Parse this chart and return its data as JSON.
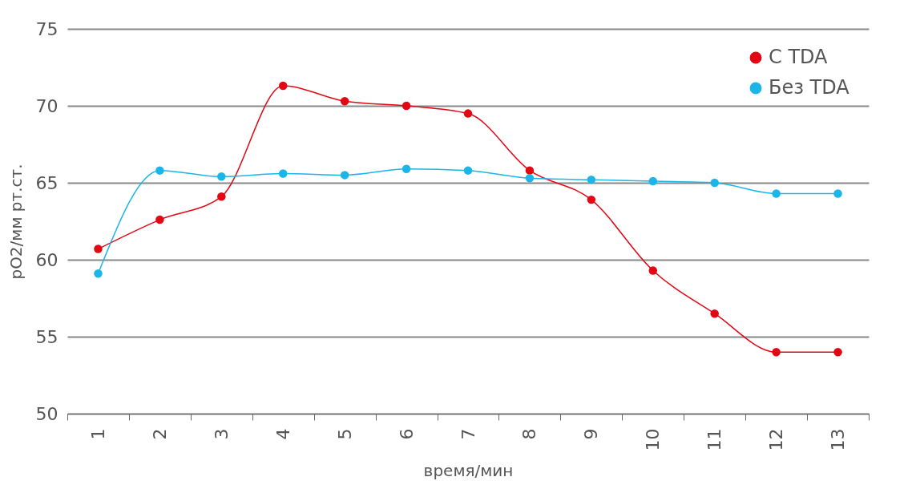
{
  "chart_data": {
    "type": "line",
    "xlabel": "время/мин",
    "ylabel": "pO2/мм рт.ст.",
    "categories": [
      "1",
      "2",
      "3",
      "4",
      "5",
      "6",
      "7",
      "8",
      "9",
      "10",
      "11",
      "12",
      "13"
    ],
    "series": [
      {
        "name": "С TDA",
        "color": "#e30613",
        "values": [
          60.7,
          62.6,
          64.1,
          71.3,
          70.3,
          70.0,
          69.5,
          65.8,
          63.9,
          59.3,
          56.5,
          54.0,
          54.0
        ]
      },
      {
        "name": "Без TDA",
        "color": "#1bb5e8",
        "values": [
          59.1,
          65.8,
          65.4,
          65.6,
          65.5,
          65.9,
          65.8,
          65.3,
          65.2,
          65.1,
          65.0,
          64.3,
          64.3
        ]
      }
    ],
    "ylim": [
      50,
      75
    ],
    "yticks": [
      50,
      55,
      60,
      65,
      70,
      75
    ],
    "grid": "y",
    "legend": "top right",
    "marker": "circle",
    "line_style": "solid"
  }
}
